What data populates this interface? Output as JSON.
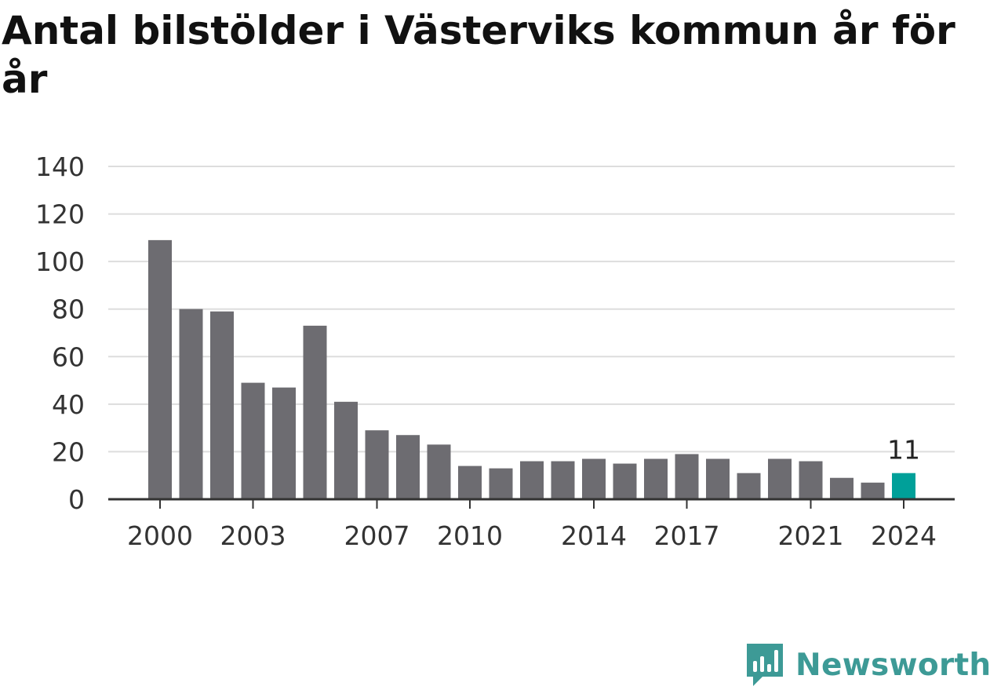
{
  "title": "Antal bilstölder i Västerviks kommun år för år",
  "brand": {
    "name": "Newsworthy",
    "icon": "newsworthy-logo-icon",
    "color": "#3d9a96"
  },
  "colors": {
    "bar": "#6d6c71",
    "highlight": "#00a099",
    "grid": "#dddddd",
    "axis": "#333333"
  },
  "chart_data": {
    "type": "bar",
    "title": "Antal bilstölder i Västerviks kommun år för år",
    "xlabel": "",
    "ylabel": "",
    "ylim": [
      0,
      140
    ],
    "yticks": [
      0,
      20,
      40,
      60,
      80,
      100,
      120,
      140
    ],
    "xtick_labels": [
      "2000",
      "2003",
      "2007",
      "2010",
      "2014",
      "2017",
      "2021",
      "2024"
    ],
    "categories": [
      "2000",
      "2001",
      "2002",
      "2003",
      "2004",
      "2005",
      "2006",
      "2007",
      "2008",
      "2009",
      "2010",
      "2011",
      "2012",
      "2013",
      "2014",
      "2015",
      "2016",
      "2017",
      "2018",
      "2019",
      "2020",
      "2021",
      "2022",
      "2023",
      "2024"
    ],
    "values": [
      109,
      80,
      79,
      49,
      47,
      73,
      41,
      29,
      27,
      23,
      14,
      13,
      16,
      16,
      17,
      15,
      17,
      19,
      17,
      11,
      17,
      16,
      9,
      7,
      11
    ],
    "highlight": {
      "category": "2024",
      "label": "11"
    },
    "grid": true,
    "legend": "none"
  }
}
